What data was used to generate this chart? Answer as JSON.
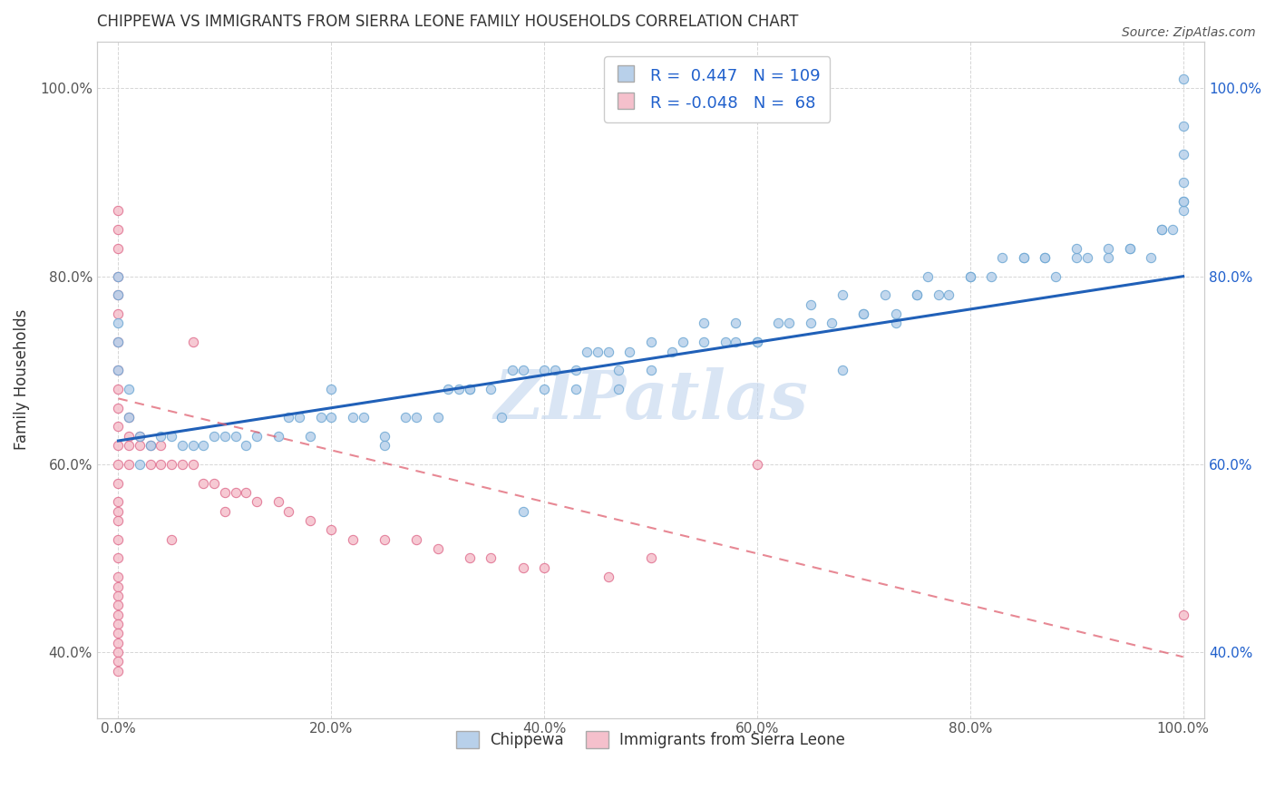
{
  "title": "CHIPPEWA VS IMMIGRANTS FROM SIERRA LEONE FAMILY HOUSEHOLDS CORRELATION CHART",
  "source": "Source: ZipAtlas.com",
  "ylabel": "Family Households",
  "xmin": 0.0,
  "xmax": 1.0,
  "ymin": 0.3,
  "ymax": 1.05,
  "xtick_labels": [
    "0.0%",
    "20.0%",
    "40.0%",
    "60.0%",
    "80.0%",
    "100.0%"
  ],
  "xtick_vals": [
    0.0,
    0.2,
    0.4,
    0.6,
    0.8,
    1.0
  ],
  "ytick_labels": [
    "40.0%",
    "60.0%",
    "80.0%",
    "100.0%"
  ],
  "ytick_vals": [
    0.4,
    0.6,
    0.8,
    1.0
  ],
  "r_blue": 0.447,
  "n_blue": 109,
  "r_pink": -0.048,
  "n_pink": 68,
  "blue_scatter_color": "#b8d0ea",
  "blue_edge_color": "#6fa8d4",
  "pink_scatter_color": "#f5c0cc",
  "pink_edge_color": "#e07090",
  "blue_line_color": "#2060b8",
  "pink_line_color": "#e06070",
  "title_color": "#333333",
  "source_color": "#555555",
  "axis_label_color": "#333333",
  "tick_color": "#555555",
  "grid_color": "#cccccc",
  "watermark_color": "#c0d4ee",
  "legend_text_color": "#2060cc",
  "blue_points_x": [
    0.0,
    0.0,
    0.0,
    0.0,
    0.0,
    0.01,
    0.01,
    0.02,
    0.02,
    0.03,
    0.04,
    0.05,
    0.06,
    0.07,
    0.08,
    0.09,
    0.1,
    0.11,
    0.12,
    0.13,
    0.15,
    0.16,
    0.17,
    0.18,
    0.19,
    0.2,
    0.22,
    0.23,
    0.25,
    0.27,
    0.28,
    0.3,
    0.31,
    0.32,
    0.33,
    0.35,
    0.37,
    0.38,
    0.4,
    0.41,
    0.43,
    0.44,
    0.45,
    0.46,
    0.47,
    0.48,
    0.5,
    0.52,
    0.53,
    0.55,
    0.57,
    0.58,
    0.6,
    0.62,
    0.63,
    0.65,
    0.67,
    0.68,
    0.7,
    0.72,
    0.73,
    0.75,
    0.76,
    0.78,
    0.8,
    0.82,
    0.85,
    0.87,
    0.88,
    0.9,
    0.91,
    0.93,
    0.95,
    0.97,
    0.98,
    0.99,
    1.0,
    1.0,
    1.0,
    1.0,
    1.0,
    1.0,
    0.33,
    0.36,
    0.25,
    0.2,
    0.4,
    0.5,
    0.55,
    0.6,
    0.65,
    0.7,
    0.75,
    0.8,
    0.85,
    0.9,
    0.93,
    0.95,
    1.0,
    0.98,
    0.83,
    0.87,
    0.77,
    0.73,
    0.68,
    0.58,
    0.47,
    0.43,
    0.38
  ],
  "blue_points_y": [
    0.8,
    0.78,
    0.75,
    0.73,
    0.7,
    0.68,
    0.65,
    0.63,
    0.6,
    0.62,
    0.63,
    0.63,
    0.62,
    0.62,
    0.62,
    0.63,
    0.63,
    0.63,
    0.62,
    0.63,
    0.63,
    0.65,
    0.65,
    0.63,
    0.65,
    0.65,
    0.65,
    0.65,
    0.63,
    0.65,
    0.65,
    0.65,
    0.68,
    0.68,
    0.68,
    0.68,
    0.7,
    0.7,
    0.7,
    0.7,
    0.7,
    0.72,
    0.72,
    0.72,
    0.7,
    0.72,
    0.7,
    0.72,
    0.73,
    0.73,
    0.73,
    0.75,
    0.73,
    0.75,
    0.75,
    0.77,
    0.75,
    0.78,
    0.76,
    0.78,
    0.76,
    0.78,
    0.8,
    0.78,
    0.8,
    0.8,
    0.82,
    0.82,
    0.8,
    0.82,
    0.82,
    0.83,
    0.83,
    0.82,
    0.85,
    0.85,
    0.87,
    0.88,
    0.9,
    0.93,
    0.96,
    1.01,
    0.68,
    0.65,
    0.62,
    0.68,
    0.68,
    0.73,
    0.75,
    0.73,
    0.75,
    0.76,
    0.78,
    0.8,
    0.82,
    0.83,
    0.82,
    0.83,
    0.88,
    0.85,
    0.82,
    0.82,
    0.78,
    0.75,
    0.7,
    0.73,
    0.68,
    0.68,
    0.55
  ],
  "pink_points_x": [
    0.0,
    0.0,
    0.0,
    0.0,
    0.0,
    0.0,
    0.0,
    0.0,
    0.0,
    0.0,
    0.0,
    0.0,
    0.0,
    0.0,
    0.0,
    0.0,
    0.0,
    0.0,
    0.0,
    0.0,
    0.0,
    0.0,
    0.0,
    0.0,
    0.0,
    0.0,
    0.0,
    0.0,
    0.0,
    0.0,
    0.01,
    0.01,
    0.01,
    0.01,
    0.02,
    0.02,
    0.03,
    0.03,
    0.04,
    0.04,
    0.05,
    0.06,
    0.07,
    0.08,
    0.09,
    0.1,
    0.11,
    0.12,
    0.13,
    0.15,
    0.16,
    0.18,
    0.2,
    0.22,
    0.25,
    0.28,
    0.3,
    0.33,
    0.35,
    0.38,
    0.4,
    0.46,
    0.5,
    0.6,
    1.0,
    0.07,
    0.1,
    0.05
  ],
  "pink_points_y": [
    0.87,
    0.85,
    0.83,
    0.8,
    0.78,
    0.76,
    0.73,
    0.7,
    0.68,
    0.66,
    0.64,
    0.62,
    0.6,
    0.58,
    0.56,
    0.55,
    0.54,
    0.52,
    0.5,
    0.48,
    0.47,
    0.46,
    0.45,
    0.44,
    0.43,
    0.42,
    0.41,
    0.4,
    0.39,
    0.38,
    0.65,
    0.63,
    0.62,
    0.6,
    0.63,
    0.62,
    0.62,
    0.6,
    0.62,
    0.6,
    0.6,
    0.6,
    0.6,
    0.58,
    0.58,
    0.57,
    0.57,
    0.57,
    0.56,
    0.56,
    0.55,
    0.54,
    0.53,
    0.52,
    0.52,
    0.52,
    0.51,
    0.5,
    0.5,
    0.49,
    0.49,
    0.48,
    0.5,
    0.6,
    0.44,
    0.73,
    0.55,
    0.52
  ]
}
